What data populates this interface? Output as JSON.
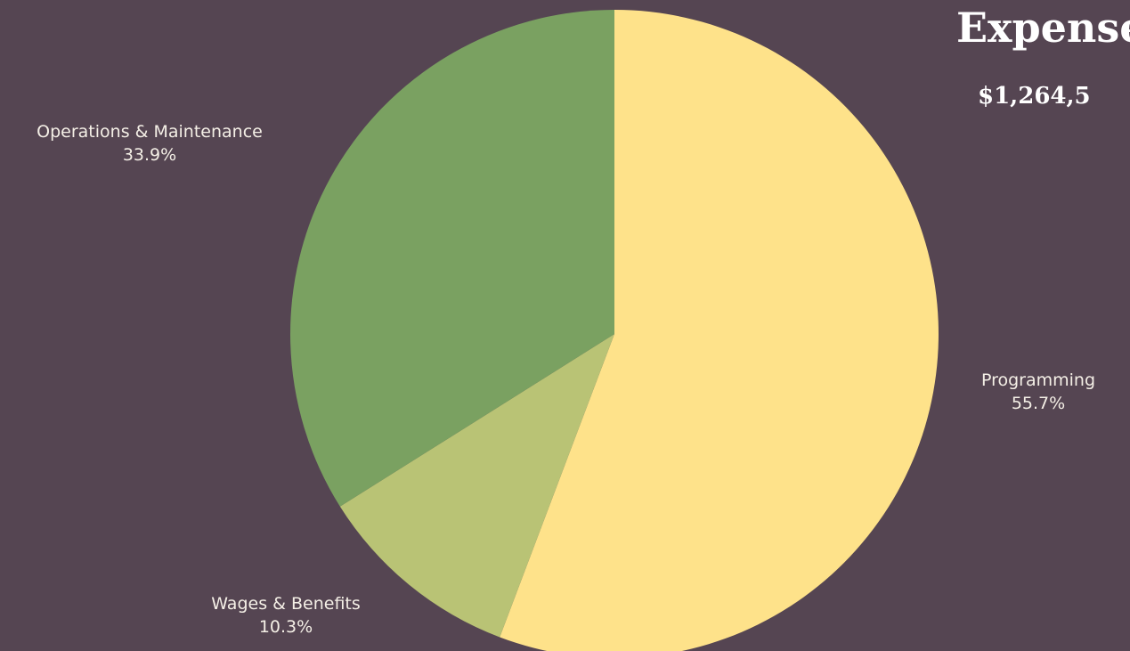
{
  "chart_data": {
    "type": "pie",
    "title": "Expenses",
    "subtitle": "$1,264,5",
    "labels": [
      "Programming",
      "Wages & Benefits",
      "Operations & Maintenance"
    ],
    "values": [
      55.7,
      10.3,
      33.9
    ],
    "display_values": [
      "55.7%",
      "10.3%",
      "33.9%"
    ],
    "colors": [
      "#fee28a",
      "#b9c375",
      "#7aa161"
    ],
    "start_angle_degrees": 0,
    "direction": "clockwise"
  }
}
